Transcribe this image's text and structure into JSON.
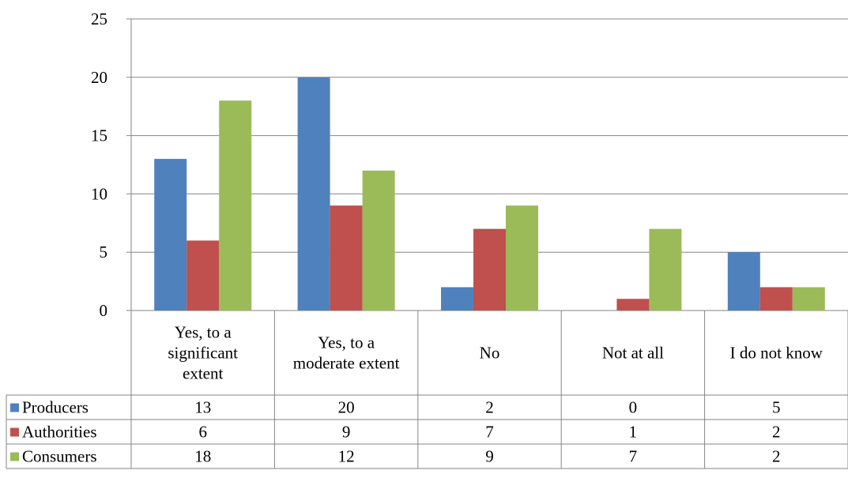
{
  "chart_data": {
    "type": "bar",
    "categories": [
      [
        "Yes, to a",
        "significant",
        "extent"
      ],
      [
        "Yes, to a",
        "moderate extent"
      ],
      [
        "No"
      ],
      [
        "Not at all"
      ],
      [
        "I do not know"
      ]
    ],
    "series": [
      {
        "name": "Producers",
        "color": "#4f81bd",
        "values": [
          13,
          20,
          2,
          0,
          5
        ]
      },
      {
        "name": "Authorities",
        "color": "#c0504d",
        "values": [
          6,
          9,
          7,
          1,
          2
        ]
      },
      {
        "name": "Consumers",
        "color": "#9bbb59",
        "values": [
          18,
          12,
          9,
          7,
          2
        ]
      }
    ],
    "ylim": [
      0,
      25
    ],
    "yticks": [
      "0",
      "5",
      "10",
      "15",
      "20",
      "25"
    ],
    "grid": true,
    "legend": "data-table-left"
  }
}
